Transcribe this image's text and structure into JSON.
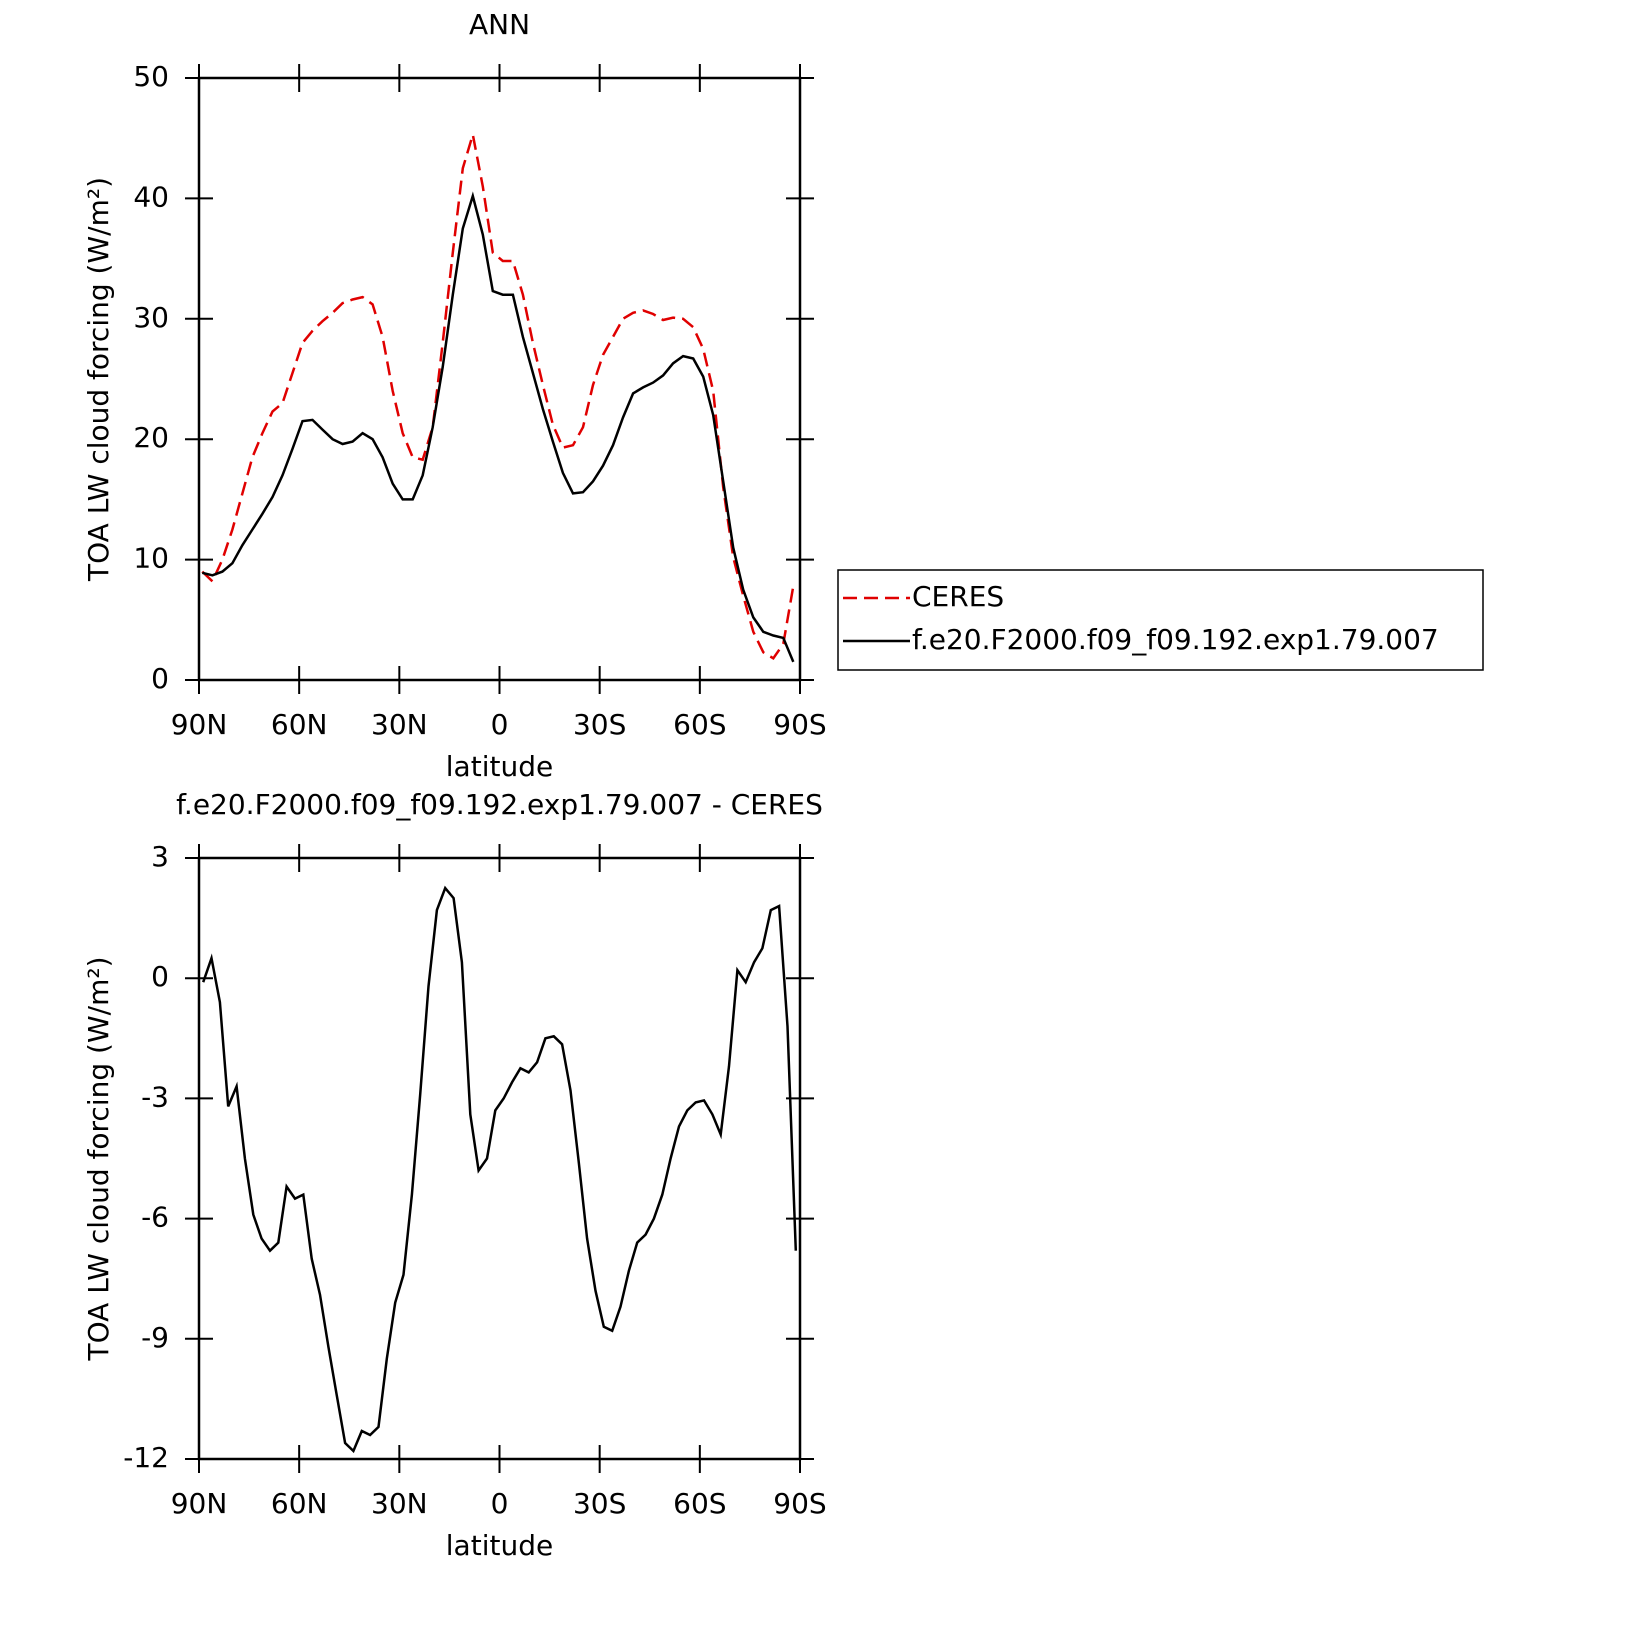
{
  "chart_data": [
    {
      "type": "line",
      "title": "ANN",
      "x_label": "latitude",
      "y_label": "TOA LW cloud forcing (W/m²)",
      "x": [
        89,
        86,
        83,
        80,
        77,
        74,
        71,
        68,
        65,
        62,
        59,
        56,
        53,
        50,
        47,
        44,
        41,
        38,
        35,
        32,
        29,
        26,
        23,
        20,
        17,
        14,
        11,
        8,
        5,
        2,
        -1,
        -4,
        -7,
        -10,
        -13,
        -16,
        -19,
        -22,
        -25,
        -28,
        -31,
        -34,
        -37,
        -40,
        -43,
        -46,
        -49,
        -52,
        -55,
        -58,
        -61,
        -64,
        -67,
        -70,
        -73,
        -76,
        -79,
        -82,
        -85,
        -88
      ],
      "series": [
        {
          "name": "CERES",
          "color": "#e00000",
          "dash": true,
          "values": [
            9.0,
            8.2,
            10.0,
            12.5,
            15.5,
            18.5,
            20.5,
            22.3,
            23.0,
            25.5,
            28.0,
            29.0,
            29.8,
            30.5,
            31.3,
            31.6,
            31.8,
            31.2,
            28.5,
            24.0,
            20.5,
            18.5,
            18.3,
            21.0,
            28.0,
            35.5,
            42.5,
            45.3,
            41.0,
            35.5,
            34.8,
            34.8,
            32.0,
            28.0,
            24.5,
            21.2,
            19.3,
            19.5,
            21.0,
            24.5,
            27.0,
            28.5,
            30.0,
            30.5,
            30.7,
            30.4,
            29.9,
            30.1,
            30.0,
            29.3,
            27.5,
            24.0,
            16.0,
            10.2,
            7.0,
            4.0,
            2.3,
            1.8,
            3.0,
            7.8
          ]
        },
        {
          "name": "f.e20.F2000.f09_f09.192.exp1.79.007",
          "color": "#000000",
          "dash": false,
          "values": [
            8.9,
            8.7,
            9.0,
            9.7,
            11.2,
            12.5,
            13.8,
            15.2,
            17.0,
            19.2,
            21.5,
            21.6,
            20.8,
            20.0,
            19.6,
            19.8,
            20.5,
            20.0,
            18.5,
            16.3,
            15.0,
            15.0,
            17.0,
            21.0,
            26.0,
            32.0,
            37.5,
            40.2,
            37.0,
            32.3,
            32.0,
            32.0,
            28.5,
            25.5,
            22.5,
            19.8,
            17.2,
            15.5,
            15.6,
            16.5,
            17.8,
            19.5,
            21.8,
            23.8,
            24.3,
            24.7,
            25.3,
            26.3,
            26.9,
            26.7,
            25.2,
            22.0,
            16.5,
            11.0,
            7.5,
            5.2,
            4.0,
            3.7,
            3.5,
            1.5
          ]
        }
      ],
      "xlim": [
        90,
        -90
      ],
      "xticks": [
        {
          "value": 90,
          "label": "90N"
        },
        {
          "value": 60,
          "label": "60N"
        },
        {
          "value": 30,
          "label": "30N"
        },
        0,
        {
          "value": -30,
          "label": "30S"
        },
        {
          "value": -60,
          "label": "60S"
        },
        {
          "value": -90,
          "label": "90S"
        }
      ],
      "ylim": [
        0,
        50
      ],
      "yticks": [
        0,
        10,
        20,
        30,
        40,
        50
      ],
      "legend": "right"
    },
    {
      "type": "line",
      "title": "f.e20.F2000.f09_f09.192.exp1.79.007 - CERES",
      "x_label": "latitude",
      "y_label": "TOA LW cloud forcing (W/m²)",
      "x": [
        88.75,
        86.25,
        83.75,
        81.25,
        78.75,
        76.25,
        73.75,
        71.25,
        68.75,
        66.25,
        63.75,
        61.25,
        58.75,
        56.25,
        53.75,
        51.25,
        48.75,
        46.25,
        43.75,
        41.25,
        38.75,
        36.25,
        33.75,
        31.25,
        28.75,
        26.25,
        23.75,
        21.25,
        18.75,
        16.25,
        13.75,
        11.25,
        8.75,
        6.25,
        3.75,
        1.25,
        -1.25,
        -3.75,
        -6.25,
        -8.75,
        -11.25,
        -13.75,
        -16.25,
        -18.75,
        -21.25,
        -23.75,
        -26.25,
        -28.75,
        -31.25,
        -33.75,
        -36.25,
        -38.75,
        -41.25,
        -43.75,
        -46.25,
        -48.75,
        -51.25,
        -53.75,
        -56.25,
        -58.75,
        -61.25,
        -63.75,
        -66.25,
        -68.75,
        -71.25,
        -73.75,
        -76.25,
        -78.75,
        -81.25,
        -83.75,
        -86.25,
        -88.75
      ],
      "series": [
        {
          "color": "#000000",
          "dash": false,
          "values": [
            -0.1,
            0.5,
            -0.6,
            -3.2,
            -2.7,
            -4.5,
            -5.9,
            -6.5,
            -6.8,
            -6.6,
            -5.2,
            -5.5,
            -5.4,
            -7.0,
            -7.9,
            -9.2,
            -10.4,
            -11.6,
            -11.8,
            -11.3,
            -11.4,
            -11.2,
            -9.5,
            -8.1,
            -7.4,
            -5.4,
            -2.9,
            -0.2,
            1.7,
            2.25,
            2.0,
            0.4,
            -3.4,
            -4.8,
            -4.5,
            -3.3,
            -3.0,
            -2.6,
            -2.25,
            -2.35,
            -2.1,
            -1.5,
            -1.45,
            -1.65,
            -2.8,
            -4.6,
            -6.5,
            -7.8,
            -8.7,
            -8.8,
            -8.2,
            -7.3,
            -6.6,
            -6.4,
            -6.0,
            -5.4,
            -4.5,
            -3.7,
            -3.3,
            -3.1,
            -3.05,
            -3.4,
            -3.9,
            -2.2,
            0.2,
            -0.1,
            0.4,
            0.75,
            1.7,
            1.8,
            -1.2,
            -6.8
          ]
        }
      ],
      "xlim": [
        90,
        -90
      ],
      "xticks": [
        {
          "value": 90,
          "label": "90N"
        },
        {
          "value": 60,
          "label": "60N"
        },
        {
          "value": 30,
          "label": "30N"
        },
        0,
        {
          "value": -30,
          "label": "30S"
        },
        {
          "value": -60,
          "label": "60S"
        },
        {
          "value": -90,
          "label": "90S"
        }
      ],
      "ylim": [
        -12,
        3
      ],
      "yticks": [
        -12,
        -9,
        -6,
        -3,
        0,
        3
      ]
    }
  ]
}
